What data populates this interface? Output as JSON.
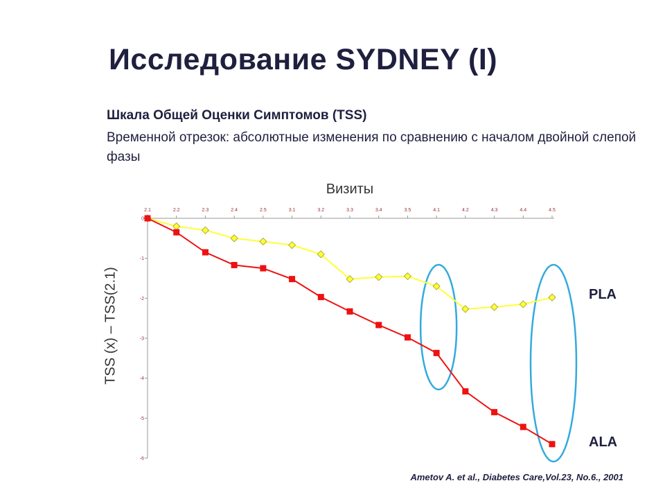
{
  "slide": {
    "title": "Исследование SYDNEY (I)",
    "subtitle_bold": "Шкала Общей Оценки Симптомов (TSS)",
    "subtitle_text": "Временной отрезок: абсолютные изменения по сравнению с началом двойной слепой фазы",
    "citation": "Ametov A. et al., Diabetes Care,Vol.23, No.6., 2001"
  },
  "chart_data": {
    "type": "line",
    "xlabel": "Визиты",
    "ylabel": "TSS (x) – TSS(2.1)",
    "categories": [
      "2.1",
      "2.2",
      "2.3",
      "2.4",
      "2.5",
      "3.1",
      "3.2",
      "3.3",
      "3.4",
      "3.5",
      "4.1",
      "4.2",
      "4.3",
      "4.4",
      "4.5"
    ],
    "ylim": [
      -6,
      0
    ],
    "yticks": [
      "0",
      "-1",
      "-2",
      "-3",
      "-4",
      "-5",
      "-6"
    ],
    "x_axis_position": "top",
    "grid": false,
    "series": [
      {
        "name": "PLA",
        "color": "#ffff33",
        "marker": "diamond",
        "values": [
          0,
          -0.2,
          -0.3,
          -0.5,
          -0.58,
          -0.67,
          -0.9,
          -1.52,
          -1.47,
          -1.45,
          -1.7,
          -2.27,
          -2.22,
          -2.15,
          -1.98
        ]
      },
      {
        "name": "ALA",
        "color": "#ee1111",
        "marker": "square",
        "values": [
          0,
          -0.35,
          -0.85,
          -1.17,
          -1.25,
          -1.52,
          -1.97,
          -2.33,
          -2.67,
          -2.98,
          -3.37,
          -4.33,
          -4.85,
          -5.22,
          -5.65
        ]
      }
    ],
    "highlights": [
      {
        "category": "4.1",
        "shape": "ellipse",
        "color": "#33aadd"
      },
      {
        "category": "4.5",
        "shape": "ellipse",
        "color": "#33aadd"
      }
    ]
  }
}
